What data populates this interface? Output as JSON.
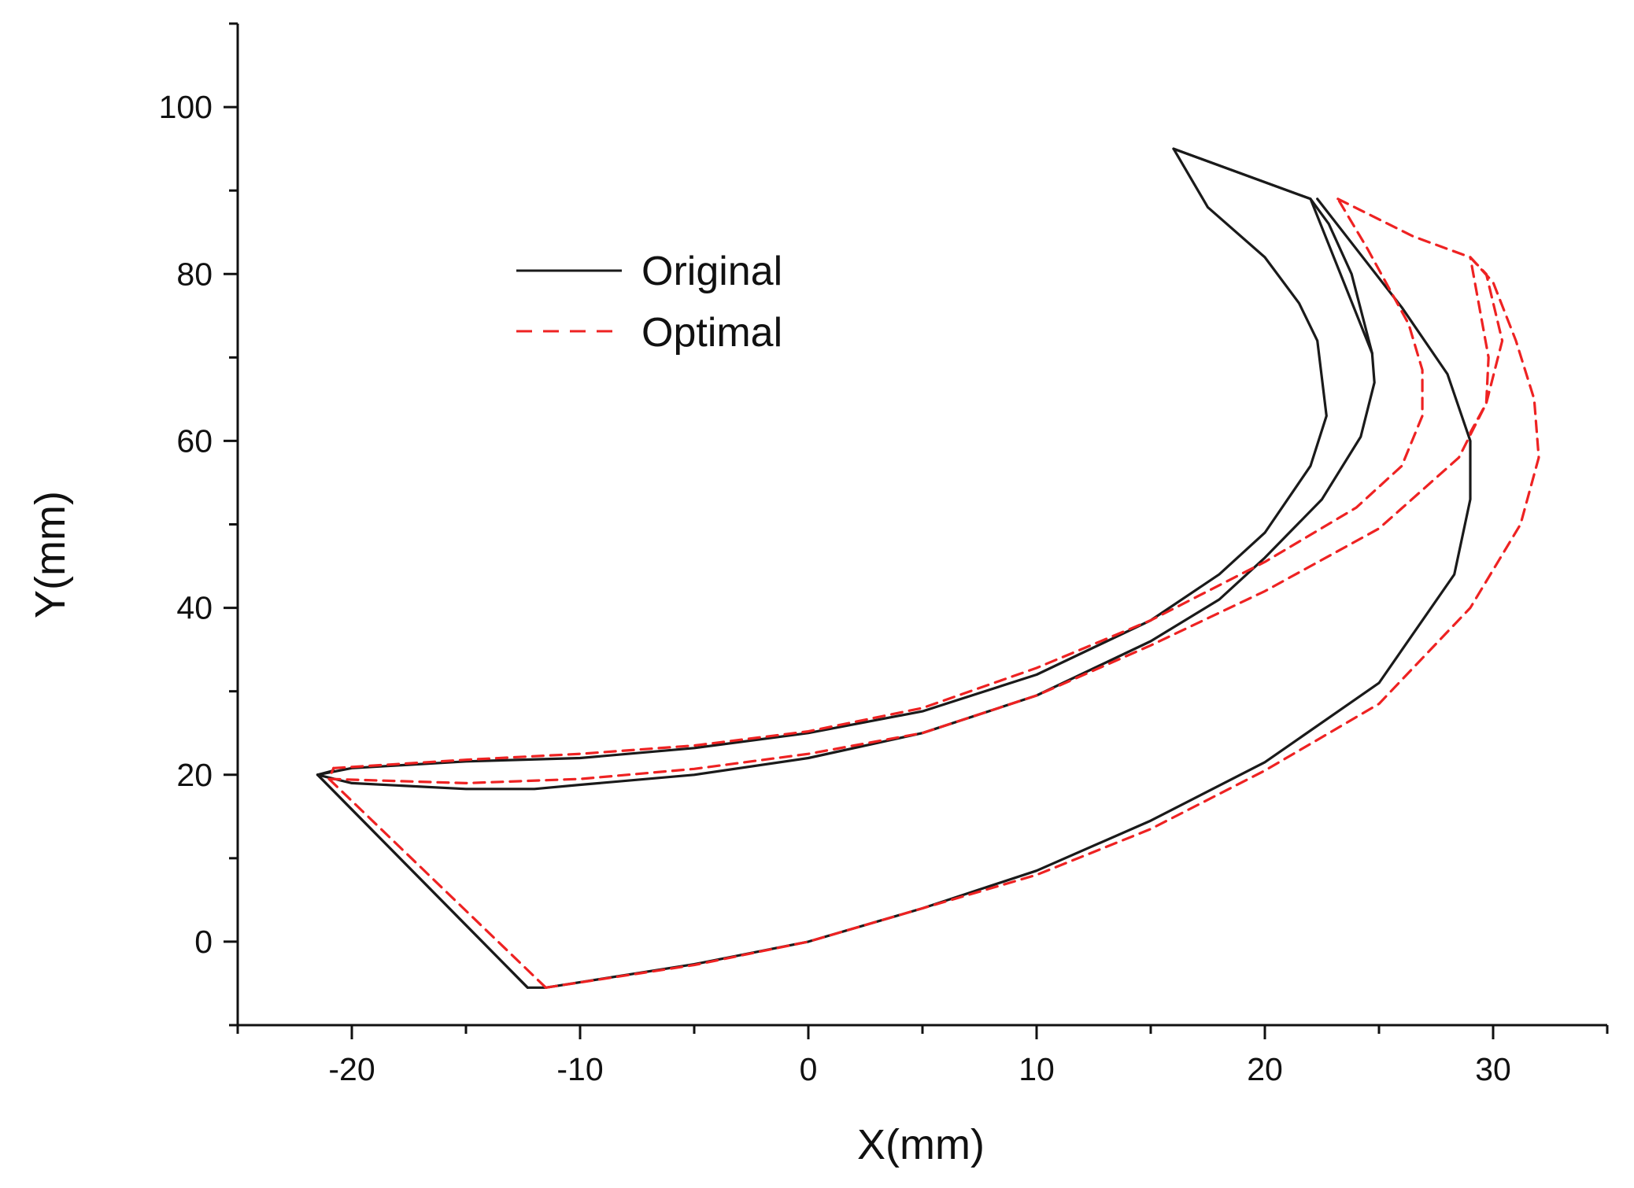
{
  "chart_data": {
    "type": "line",
    "title": "",
    "xlabel": "X(mm)",
    "ylabel": "Y(mm)",
    "xlim": [
      -25,
      35
    ],
    "ylim": [
      -10,
      110
    ],
    "xticks": [
      -20,
      -10,
      0,
      10,
      20,
      30
    ],
    "yticks": [
      0,
      20,
      40,
      60,
      80,
      100
    ],
    "grid": false,
    "legend_position": "upper-left",
    "series": [
      {
        "name": "Original",
        "color": "#1a1a1a",
        "style": "solid",
        "curves": [
          [
            [
              -21.5,
              20
            ],
            [
              -20,
              20.8
            ],
            [
              -15,
              21.6
            ],
            [
              -10,
              22
            ],
            [
              -5,
              23.2
            ],
            [
              0,
              25
            ],
            [
              5,
              27.6
            ],
            [
              10,
              32
            ],
            [
              15,
              38.5
            ],
            [
              18,
              44
            ],
            [
              20,
              49
            ],
            [
              22,
              57
            ],
            [
              22.7,
              63
            ],
            [
              22.3,
              72
            ],
            [
              21.5,
              76.5
            ],
            [
              20,
              82
            ],
            [
              17.5,
              88
            ],
            [
              16,
              95
            ]
          ],
          [
            [
              -21.5,
              20
            ],
            [
              -20,
              19
            ],
            [
              -15,
              18.3
            ],
            [
              -12,
              18.3
            ],
            [
              -10,
              18.8
            ],
            [
              -5,
              20
            ],
            [
              0,
              22
            ],
            [
              5,
              25
            ],
            [
              10,
              29.5
            ],
            [
              15,
              36
            ],
            [
              18,
              41
            ],
            [
              20,
              46
            ],
            [
              22.5,
              53
            ],
            [
              24.2,
              60.5
            ],
            [
              24.8,
              67
            ],
            [
              24.7,
              70.5
            ],
            [
              23.8,
              80
            ],
            [
              22.8,
              86
            ],
            [
              22,
              89
            ],
            [
              16,
              95
            ]
          ],
          [
            [
              16,
              95
            ],
            [
              22,
              89
            ],
            [
              24.7,
              70.5
            ]
          ],
          [
            [
              -21.5,
              20
            ],
            [
              -12.3,
              -5.5
            ],
            [
              -11.5,
              -5.5
            ],
            [
              -5,
              -2.7
            ],
            [
              0,
              0
            ],
            [
              5,
              4
            ],
            [
              10,
              8.5
            ],
            [
              15,
              14.5
            ],
            [
              20,
              21.5
            ],
            [
              25,
              31
            ],
            [
              28.3,
              44
            ],
            [
              29,
              53
            ],
            [
              29,
              60
            ],
            [
              28,
              68
            ],
            [
              26,
              76
            ],
            [
              22.3,
              89
            ]
          ],
          [
            [
              -21.5,
              20
            ],
            [
              -20.8,
              20.5
            ]
          ],
          [
            [
              -12.3,
              -5.5
            ],
            [
              -21.5,
              20
            ]
          ]
        ]
      },
      {
        "name": "Optimal",
        "color": "#ee2222",
        "style": "dashed",
        "curves": [
          [
            [
              -20.8,
              20.8
            ],
            [
              -15,
              21.8
            ],
            [
              -10,
              22.5
            ],
            [
              -5,
              23.5
            ],
            [
              0,
              25.2
            ],
            [
              5,
              28
            ],
            [
              10,
              32.8
            ],
            [
              15,
              38.5
            ],
            [
              20,
              45.5
            ],
            [
              24,
              52
            ],
            [
              26,
              57
            ],
            [
              26.9,
              63
            ],
            [
              26.9,
              68.5
            ],
            [
              26.3,
              74
            ],
            [
              25.5,
              78
            ],
            [
              24.5,
              83
            ],
            [
              23.2,
              89
            ]
          ],
          [
            [
              -21,
              19.5
            ],
            [
              -15,
              19
            ],
            [
              -10,
              19.5
            ],
            [
              -5,
              20.7
            ],
            [
              0,
              22.5
            ],
            [
              5,
              25
            ],
            [
              10,
              29.5
            ],
            [
              15,
              35.5
            ],
            [
              20,
              42
            ],
            [
              25,
              49.5
            ],
            [
              28.5,
              58
            ],
            [
              29.7,
              64.5
            ],
            [
              29.8,
              70
            ],
            [
              29.4,
              76
            ],
            [
              29,
              82
            ]
          ],
          [
            [
              23.2,
              89
            ],
            [
              26.5,
              84.5
            ],
            [
              29,
              82
            ],
            [
              29.7,
              80
            ],
            [
              30.4,
              72
            ],
            [
              29.7,
              64.5
            ],
            [
              29,
              61
            ]
          ],
          [
            [
              -11.5,
              -5.5
            ],
            [
              -5,
              -2.8
            ],
            [
              0,
              0
            ],
            [
              5,
              4
            ],
            [
              10,
              8
            ],
            [
              15,
              13.5
            ],
            [
              20,
              20.5
            ],
            [
              25,
              28.5
            ],
            [
              29,
              40
            ],
            [
              31.2,
              50
            ],
            [
              32,
              58
            ],
            [
              31.8,
              65
            ],
            [
              31,
              72
            ],
            [
              30,
              79
            ],
            [
              29,
              82
            ]
          ],
          [
            [
              -11.5,
              -5.5
            ],
            [
              -21,
              19.5
            ],
            [
              -20.8,
              20.8
            ]
          ]
        ]
      }
    ]
  }
}
